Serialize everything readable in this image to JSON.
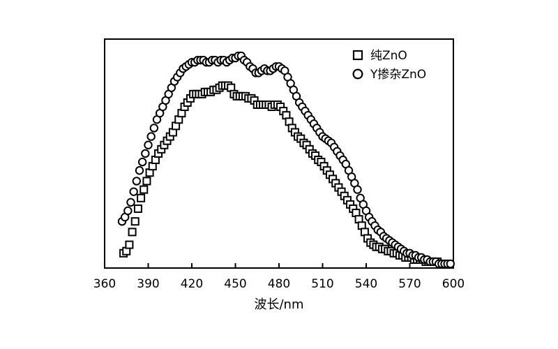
{
  "chart_data": {
    "type": "scatter",
    "title": "",
    "xlabel": "波长/nm",
    "ylabel": "",
    "xlim": [
      360,
      600
    ],
    "ylim": [
      0,
      1
    ],
    "x_ticks": [
      360,
      390,
      420,
      450,
      480,
      510,
      540,
      570,
      600
    ],
    "x_tick_labels": [
      "360",
      "390",
      "420",
      "450",
      "480",
      "510",
      "540",
      "570",
      "600"
    ],
    "y_ticks_shown": false,
    "grid": false,
    "legend_position": "top-right",
    "series": [
      {
        "name": "纯ZnO",
        "marker": "square",
        "color": "#000000",
        "x": [
          373,
          375,
          377,
          379,
          381,
          383,
          385,
          387,
          389,
          391,
          393,
          395,
          397,
          399,
          401,
          403,
          405,
          407,
          409,
          411,
          413,
          415,
          417,
          419,
          421,
          423,
          425,
          427,
          429,
          431,
          433,
          435,
          437,
          439,
          441,
          443,
          445,
          447,
          449,
          451,
          453,
          455,
          457,
          459,
          461,
          463,
          465,
          467,
          469,
          471,
          473,
          475,
          477,
          479,
          481,
          483,
          485,
          487,
          489,
          491,
          493,
          495,
          497,
          499,
          501,
          503,
          505,
          507,
          509,
          511,
          513,
          515,
          517,
          519,
          521,
          523,
          525,
          527,
          529,
          531,
          533,
          535,
          537,
          539,
          541,
          543,
          545,
          547,
          549,
          551,
          553,
          555,
          557,
          559,
          561,
          563,
          565,
          567,
          569,
          571,
          573,
          575,
          577,
          579,
          581,
          583,
          585,
          587,
          589,
          591,
          593,
          595
        ],
        "y": [
          0.05,
          0.06,
          0.09,
          0.15,
          0.2,
          0.26,
          0.31,
          0.35,
          0.39,
          0.43,
          0.46,
          0.49,
          0.52,
          0.54,
          0.56,
          0.58,
          0.6,
          0.62,
          0.65,
          0.68,
          0.71,
          0.74,
          0.76,
          0.78,
          0.8,
          0.8,
          0.8,
          0.8,
          0.81,
          0.81,
          0.81,
          0.82,
          0.82,
          0.83,
          0.84,
          0.84,
          0.84,
          0.83,
          0.8,
          0.79,
          0.79,
          0.79,
          0.79,
          0.78,
          0.78,
          0.77,
          0.75,
          0.75,
          0.75,
          0.75,
          0.75,
          0.74,
          0.75,
          0.75,
          0.74,
          0.72,
          0.7,
          0.67,
          0.64,
          0.62,
          0.6,
          0.59,
          0.57,
          0.56,
          0.54,
          0.52,
          0.51,
          0.49,
          0.48,
          0.46,
          0.44,
          0.42,
          0.4,
          0.38,
          0.36,
          0.34,
          0.32,
          0.3,
          0.28,
          0.26,
          0.24,
          0.21,
          0.18,
          0.15,
          0.12,
          0.1,
          0.09,
          0.08,
          0.08,
          0.07,
          0.07,
          0.06,
          0.06,
          0.05,
          0.05,
          0.04,
          0.04,
          0.03,
          0.03,
          0.03,
          0.02,
          0.02,
          0.02,
          0.02,
          0.01,
          0.01,
          0.01,
          0.01,
          0.01,
          0.0,
          0.0,
          0.0
        ]
      },
      {
        "name": "Y掺杂ZnO",
        "marker": "circle",
        "color": "#000000",
        "x": [
          372,
          374,
          376,
          378,
          380,
          382,
          384,
          386,
          388,
          390,
          392,
          394,
          396,
          398,
          400,
          402,
          404,
          406,
          408,
          410,
          412,
          414,
          416,
          418,
          420,
          422,
          424,
          426,
          428,
          430,
          432,
          434,
          436,
          438,
          440,
          442,
          444,
          446,
          448,
          450,
          452,
          454,
          456,
          458,
          460,
          462,
          464,
          466,
          468,
          470,
          472,
          474,
          476,
          478,
          480,
          482,
          484,
          486,
          488,
          490,
          492,
          494,
          496,
          498,
          500,
          502,
          504,
          506,
          508,
          510,
          512,
          514,
          516,
          518,
          520,
          522,
          524,
          526,
          528,
          530,
          532,
          534,
          536,
          538,
          540,
          542,
          544,
          546,
          548,
          550,
          552,
          554,
          556,
          558,
          560,
          562,
          564,
          566,
          568,
          570,
          572,
          574,
          576,
          578,
          580,
          582,
          584,
          586,
          588,
          590,
          592,
          594,
          596,
          598
        ],
        "y": [
          0.2,
          0.22,
          0.25,
          0.29,
          0.34,
          0.39,
          0.44,
          0.48,
          0.52,
          0.56,
          0.6,
          0.64,
          0.68,
          0.71,
          0.74,
          0.77,
          0.8,
          0.83,
          0.86,
          0.88,
          0.9,
          0.92,
          0.93,
          0.94,
          0.95,
          0.95,
          0.96,
          0.96,
          0.96,
          0.95,
          0.95,
          0.96,
          0.96,
          0.95,
          0.96,
          0.96,
          0.95,
          0.96,
          0.97,
          0.97,
          0.98,
          0.98,
          0.96,
          0.95,
          0.93,
          0.92,
          0.9,
          0.9,
          0.91,
          0.92,
          0.91,
          0.91,
          0.92,
          0.93,
          0.93,
          0.92,
          0.91,
          0.88,
          0.85,
          0.82,
          0.79,
          0.76,
          0.74,
          0.72,
          0.7,
          0.68,
          0.66,
          0.64,
          0.62,
          0.6,
          0.59,
          0.58,
          0.57,
          0.55,
          0.53,
          0.51,
          0.49,
          0.47,
          0.44,
          0.41,
          0.38,
          0.35,
          0.31,
          0.28,
          0.25,
          0.22,
          0.2,
          0.18,
          0.16,
          0.15,
          0.13,
          0.12,
          0.11,
          0.1,
          0.09,
          0.08,
          0.07,
          0.06,
          0.05,
          0.05,
          0.04,
          0.04,
          0.03,
          0.03,
          0.02,
          0.02,
          0.01,
          0.01,
          0.01,
          0.0,
          0.0,
          0.0,
          0.0,
          0.0
        ]
      }
    ]
  }
}
